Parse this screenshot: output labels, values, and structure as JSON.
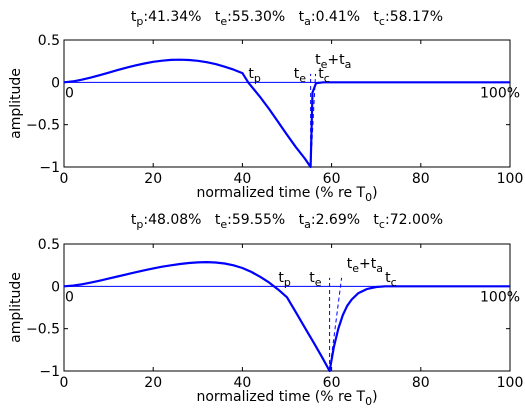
{
  "chart_data": [
    {
      "type": "line",
      "title": "t_p:41.34%  t_e:55.30%  t_a:0.41%  t_c:58.17%",
      "title_parts": [
        {
          "symbol": "t",
          "sub": "p",
          "value": ":41.34%"
        },
        {
          "symbol": "t",
          "sub": "e",
          "value": ":55.30%"
        },
        {
          "symbol": "t",
          "sub": "a",
          "value": ":0.41%"
        },
        {
          "symbol": "t",
          "sub": "c",
          "value": ":58.17%"
        }
      ],
      "xlabel": "normalized time (% re T",
      "xlabel_sub": "0",
      "xlabel_close": ")",
      "ylabel": "amplitude",
      "xlim": [
        0,
        100
      ],
      "ylim": [
        -1,
        0.5
      ],
      "xticks": [
        0,
        20,
        40,
        60,
        80,
        100
      ],
      "yticks": [
        -1,
        -0.5,
        0,
        0.5
      ],
      "ytick_labels": [
        "−1",
        "−0.5",
        "0",
        "0.5"
      ],
      "grid": false,
      "zero_line_labels": {
        "left": "0",
        "right": "100%"
      },
      "params": {
        "tp": 41.34,
        "te": 55.3,
        "ta": 0.41,
        "tc": 58.17
      },
      "series": [
        {
          "color": "#0000ff",
          "x": [
            0,
            2,
            4,
            6,
            8,
            10,
            12,
            14,
            16,
            18,
            20,
            22,
            24,
            26,
            28,
            30,
            32,
            34,
            36,
            38,
            40,
            41.34,
            42,
            44,
            46,
            48,
            50,
            52,
            54,
            55.3,
            55.71,
            56.5,
            58.17,
            60,
            80,
            100
          ],
          "y": [
            0,
            0.011,
            0.031,
            0.056,
            0.084,
            0.114,
            0.144,
            0.173,
            0.2,
            0.223,
            0.242,
            0.256,
            0.265,
            0.267,
            0.264,
            0.254,
            0.238,
            0.215,
            0.185,
            0.15,
            0.109,
            -0.004,
            -0.046,
            -0.174,
            -0.316,
            -0.467,
            -0.62,
            -0.766,
            -0.9,
            -1.0,
            -0.12,
            -0.01,
            0,
            0,
            0,
            0
          ]
        }
      ],
      "annotations": [
        {
          "symbol": "t",
          "sub": "p",
          "x": 41.34,
          "y": 0.03
        },
        {
          "symbol": "t",
          "sub": "e",
          "x": 51.5,
          "y": 0.03
        },
        {
          "symbol": "t",
          "sub": "c",
          "x": 57.0,
          "y": 0.03
        },
        {
          "symbol": "t",
          "sub": "e",
          "plus": "+t",
          "sub2": "a",
          "x": 56.3,
          "y": 0.19
        }
      ],
      "dashed_markers": [
        {
          "x": [
            55.3,
            55.3
          ],
          "y": [
            -1.0,
            0.1
          ],
          "color": "#0000ff"
        },
        {
          "x": [
            55.3,
            56.4
          ],
          "y": [
            -1.0,
            0.1
          ],
          "color": "#0000ff"
        }
      ]
    },
    {
      "type": "line",
      "title": "t_p:48.08%  t_e:59.55%  t_a:2.69%  t_c:72.00%",
      "title_parts": [
        {
          "symbol": "t",
          "sub": "p",
          "value": ":48.08%"
        },
        {
          "symbol": "t",
          "sub": "e",
          "value": ":59.55%"
        },
        {
          "symbol": "t",
          "sub": "a",
          "value": ":2.69%"
        },
        {
          "symbol": "t",
          "sub": "c",
          "value": ":72.00%"
        }
      ],
      "xlabel": "normalized time (% re T",
      "xlabel_sub": "0",
      "xlabel_close": ")",
      "ylabel": "amplitude",
      "xlim": [
        0,
        100
      ],
      "ylim": [
        -1,
        0.5
      ],
      "xticks": [
        0,
        20,
        40,
        60,
        80,
        100
      ],
      "yticks": [
        -1,
        -0.5,
        0,
        0.5
      ],
      "ytick_labels": [
        "−1",
        "−0.5",
        "0",
        "0.5"
      ],
      "grid": false,
      "zero_line_labels": {
        "left": "0",
        "right": "100%"
      },
      "params": {
        "tp": 48.08,
        "te": 59.55,
        "ta": 2.69,
        "tc": 72.0
      },
      "series": [
        {
          "color": "#0000ff",
          "x": [
            0,
            2,
            4,
            6,
            8,
            10,
            12,
            14,
            16,
            18,
            20,
            22,
            24,
            26,
            28,
            30,
            32,
            34,
            36,
            38,
            40,
            42,
            44,
            46,
            48.08,
            50,
            52,
            54,
            56,
            58,
            59.55,
            60.5,
            61.5,
            62.5,
            63.5,
            64.5,
            66,
            68,
            70,
            72,
            80,
            100
          ],
          "y": [
            0,
            0.009,
            0.024,
            0.044,
            0.067,
            0.091,
            0.116,
            0.141,
            0.166,
            0.189,
            0.212,
            0.232,
            0.249,
            0.264,
            0.276,
            0.283,
            0.286,
            0.282,
            0.27,
            0.249,
            0.216,
            0.171,
            0.113,
            0.044,
            -0.04,
            -0.129,
            -0.307,
            -0.487,
            -0.667,
            -0.85,
            -1.0,
            -0.72,
            -0.5,
            -0.34,
            -0.23,
            -0.155,
            -0.08,
            -0.03,
            -0.008,
            0,
            0,
            0
          ]
        }
      ],
      "annotations": [
        {
          "symbol": "t",
          "sub": "p",
          "x": 48.08,
          "y": 0.03
        },
        {
          "symbol": "t",
          "sub": "e",
          "x": 55.0,
          "y": 0.03
        },
        {
          "symbol": "t",
          "sub": "c",
          "x": 72.0,
          "y": 0.03
        },
        {
          "symbol": "t",
          "sub": "e",
          "plus": "+t",
          "sub2": "a",
          "x": 63.4,
          "y": 0.19
        }
      ],
      "dashed_markers": [
        {
          "x": [
            59.55,
            59.55
          ],
          "y": [
            -1.0,
            0.1
          ],
          "color": "#0000ff"
        },
        {
          "x": [
            59.55,
            62.24
          ],
          "y": [
            -1.0,
            0.1
          ],
          "color": "#0000ff"
        }
      ]
    }
  ]
}
